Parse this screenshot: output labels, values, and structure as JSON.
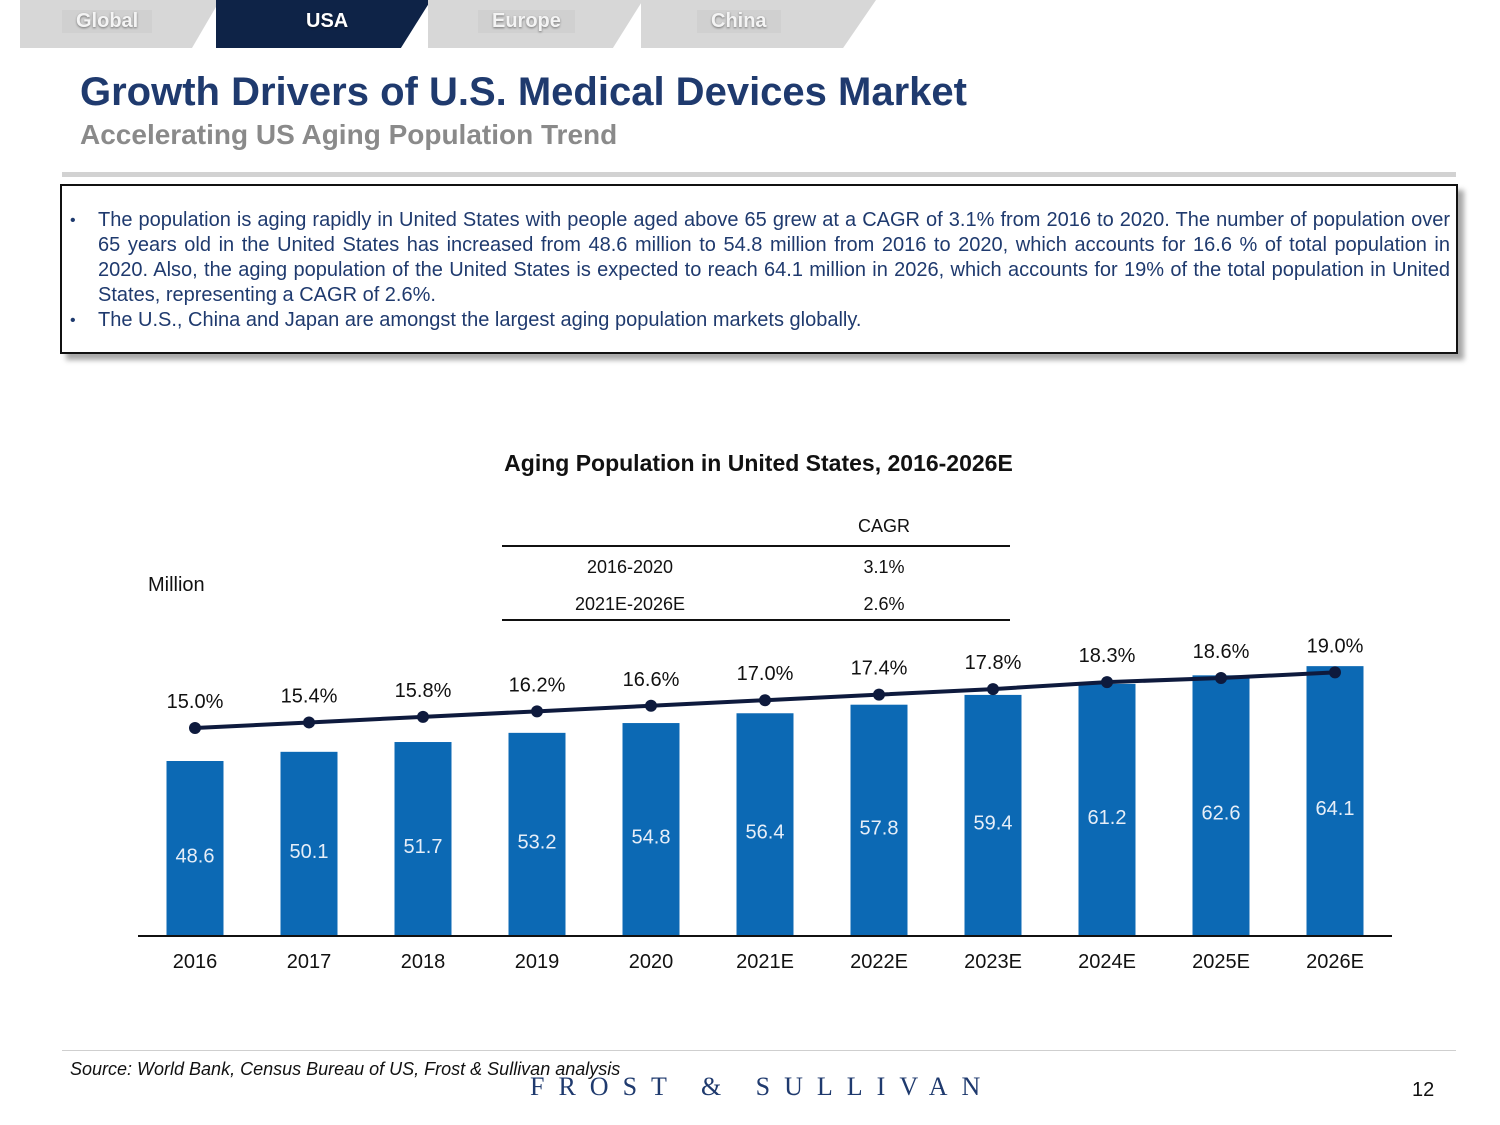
{
  "tabs": [
    {
      "label": "Global",
      "active": false
    },
    {
      "label": "USA",
      "active": true
    },
    {
      "label": "Europe",
      "active": false
    },
    {
      "label": "China",
      "active": false
    }
  ],
  "header": {
    "title": "Growth Drivers of U.S. Medical Devices Market",
    "subtitle": "Accelerating US Aging Population Trend"
  },
  "bullets": [
    "The population is aging rapidly in United States with people aged above 65 grew at a CAGR of 3.1% from 2016 to 2020. The number of population over 65 years old in the United States has increased from 48.6 million to 54.8 million from 2016 to 2020, which accounts for 16.6 % of total population in 2020. Also, the aging population of the United States is expected to reach 64.1 million in 2026, which accounts for 19% of the total population in United States, representing a CAGR of 2.6%.",
    "The U.S., China and Japan are amongst the largest aging population markets globally."
  ],
  "chart_data": {
    "type": "bar",
    "title": "Aging Population in United States, 2016-2026E",
    "ylabel": "Million",
    "categories": [
      "2016",
      "2017",
      "2018",
      "2019",
      "2020",
      "2021E",
      "2022E",
      "2023E",
      "2024E",
      "2025E",
      "2026E"
    ],
    "series": [
      {
        "name": "Aging population (Million)",
        "type": "bar",
        "values": [
          48.6,
          50.1,
          51.7,
          53.2,
          54.8,
          56.4,
          57.8,
          59.4,
          61.2,
          62.6,
          64.1
        ],
        "color": "#0c69b4"
      },
      {
        "name": "Share of total population (%)",
        "type": "line",
        "values": [
          15.0,
          15.4,
          15.8,
          16.2,
          16.6,
          17.0,
          17.4,
          17.8,
          18.3,
          18.6,
          19.0
        ],
        "labels": [
          "15.0%",
          "15.4%",
          "15.8%",
          "16.2%",
          "16.6%",
          "17.0%",
          "17.4%",
          "17.8%",
          "18.3%",
          "18.6%",
          "19.0%"
        ],
        "color": "#0e1a3d"
      }
    ],
    "cagr_table": {
      "header": "CAGR",
      "rows": [
        {
          "period": "2016-2020",
          "value": "3.1%"
        },
        {
          "period": "2021E-2026E",
          "value": "2.6%"
        }
      ]
    }
  },
  "footer": {
    "source": "Source: World Bank, Census Bureau of US, Frost & Sullivan analysis",
    "logo": "FROST & SULLIVAN",
    "page": "12"
  }
}
